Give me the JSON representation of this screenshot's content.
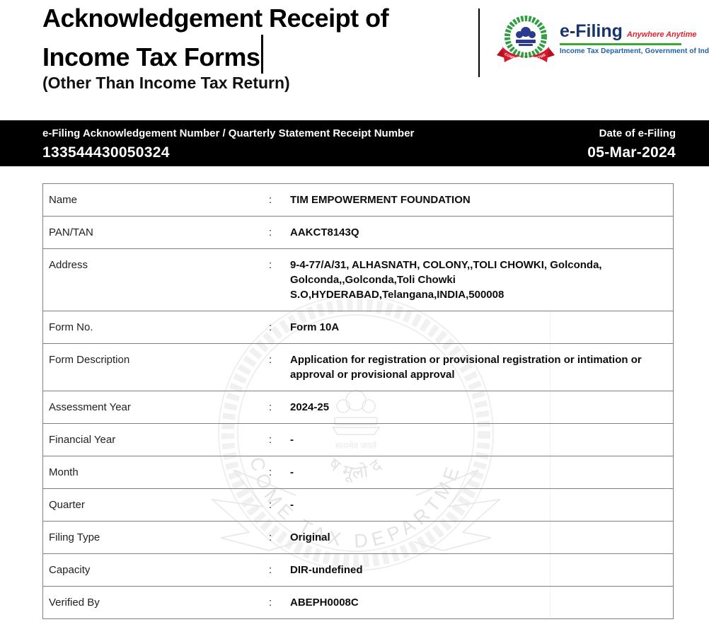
{
  "header": {
    "title_line1": "Acknowledgement Receipt of",
    "title_line2": "Income Tax Forms",
    "subtitle": "(Other Than Income Tax Return)",
    "logo": {
      "efiling": "e-Filing",
      "tagline": "Anywhere Anytime",
      "dept_line": "Income Tax Department, Government of India",
      "emblem_banner": "INCOME TAX DEPARTMENT"
    }
  },
  "ack_bar": {
    "label": "e-Filing Acknowledgement Number / Quarterly Statement Receipt Number",
    "number": "133544430050324",
    "date_label": "Date of e-Filing",
    "date_value": "05-Mar-2024"
  },
  "details": {
    "separator": ":",
    "rows": [
      {
        "label": "Name",
        "value": "TIM EMPOWERMENT FOUNDATION"
      },
      {
        "label": "PAN/TAN",
        "value": "AAKCT8143Q"
      },
      {
        "label": "Address",
        "value": "9-4-77/A/31, ALHASNATH, COLONY,,TOLI CHOWKI, Golconda, Golconda,,Golconda,Toli Chowki S.O,HYDERABAD,Telangana,INDIA,500008"
      },
      {
        "label": "Form No.",
        "value": "Form 10A"
      },
      {
        "label": "Form Description",
        "value": "Application for registration or provisional registration or intimation or approval or provisional approval"
      },
      {
        "label": "Assessment Year",
        "value": "2024-25"
      },
      {
        "label": "Financial Year",
        "value": "-"
      },
      {
        "label": "Month",
        "value": "-"
      },
      {
        "label": "Quarter",
        "value": "-"
      },
      {
        "label": "Filing Type",
        "value": "Original"
      },
      {
        "label": "Capacity",
        "value": "DIR-undefined"
      },
      {
        "label": "Verified By",
        "value": "ABEPH0008C"
      }
    ]
  },
  "watermark": {
    "arc_text": "INCOME TAX DEPARTMENT",
    "hindi_small": "सत्यमेव जयते",
    "hindi_large": "कोष मूलो दण्ड"
  },
  "colors": {
    "ack_bar_bg": "#000000",
    "ack_bar_fg": "#ffffff",
    "efiling_blue": "#17356b",
    "tagline_red": "#e0212d",
    "rule_green": "#3aaa35",
    "dept_blue": "#1c5fa8",
    "wreath_green": "#2f9e41",
    "lion_blue": "#2b3a8c",
    "ribbon_red": "#d6182c",
    "table_border_gray": "#7f7f7f"
  }
}
